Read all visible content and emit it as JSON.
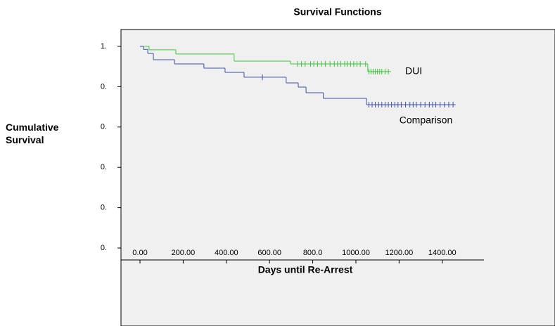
{
  "chart_data": {
    "type": "step",
    "title": "Survival Functions",
    "xlabel": "Days until Re-Arrest",
    "ylabel": "Cumulative Survival",
    "xlim": [
      -88,
      1593
    ],
    "ylim": [
      0,
      1.0
    ],
    "xticks": [
      {
        "value": 0,
        "label": "0.00"
      },
      {
        "value": 200,
        "label": "200.00"
      },
      {
        "value": 400,
        "label": "400.00"
      },
      {
        "value": 600,
        "label": "600.00"
      },
      {
        "value": 800,
        "label": "800.0"
      },
      {
        "value": 1000,
        "label": "1000.00"
      },
      {
        "value": 1200,
        "label": "1200.00"
      },
      {
        "value": 1400,
        "label": "1400.00"
      }
    ],
    "yticks": [
      {
        "value": 1.0,
        "label": "1."
      },
      {
        "value": 0.8,
        "label": "0."
      },
      {
        "value": 0.6,
        "label": "0."
      },
      {
        "value": 0.4,
        "label": "0."
      },
      {
        "value": 0.2,
        "label": "0."
      },
      {
        "value": 0.0,
        "label": "0."
      }
    ],
    "series": [
      {
        "name": "DUI",
        "color": "#3cc43c",
        "x": [
          0,
          42,
          166,
          436,
          697,
          1055,
          1163
        ],
        "values": [
          1.0,
          0.983,
          0.962,
          0.927,
          0.913,
          0.875,
          0.875
        ],
        "censored_x": [
          730,
          748,
          765,
          790,
          805,
          822,
          840,
          858,
          880,
          900,
          915,
          930,
          948,
          960,
          975,
          990,
          1005,
          1020,
          1045,
          1060,
          1070,
          1080,
          1090,
          1100,
          1110,
          1120,
          1135,
          1150
        ],
        "censored_values": [
          0.913,
          0.913,
          0.913,
          0.913,
          0.913,
          0.913,
          0.913,
          0.913,
          0.913,
          0.913,
          0.913,
          0.913,
          0.913,
          0.913,
          0.913,
          0.913,
          0.913,
          0.913,
          0.913,
          0.875,
          0.875,
          0.875,
          0.875,
          0.875,
          0.875,
          0.875,
          0.875,
          0.875
        ]
      },
      {
        "name": "Comparison",
        "color": "#3b4fa8",
        "x": [
          0,
          16,
          36,
          62,
          160,
          296,
          394,
          482,
          677,
          733,
          769,
          849,
          1049,
          1462
        ],
        "values": [
          1.0,
          0.985,
          0.965,
          0.934,
          0.913,
          0.892,
          0.871,
          0.847,
          0.819,
          0.798,
          0.77,
          0.742,
          0.711,
          0.711
        ],
        "censored_x": [
          567,
          1060,
          1075,
          1090,
          1105,
          1120,
          1135,
          1150,
          1165,
          1180,
          1195,
          1210,
          1230,
          1250,
          1265,
          1280,
          1300,
          1320,
          1340,
          1355,
          1370,
          1390,
          1410,
          1430,
          1450
        ],
        "censored_values": [
          0.847,
          0.711,
          0.711,
          0.711,
          0.711,
          0.711,
          0.711,
          0.711,
          0.711,
          0.711,
          0.711,
          0.711,
          0.711,
          0.711,
          0.711,
          0.711,
          0.711,
          0.711,
          0.711,
          0.711,
          0.711,
          0.711,
          0.711,
          0.711,
          0.711
        ]
      }
    ]
  }
}
